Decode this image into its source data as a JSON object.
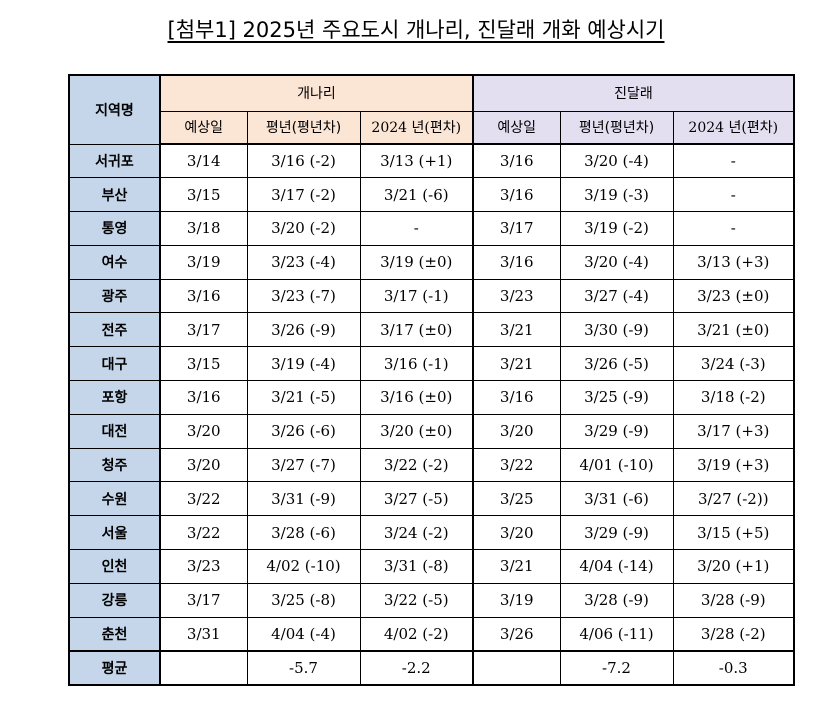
{
  "title": "[첨부1] 2025년 주요도시 개나리, 진달래 개화 예상시기",
  "header": {
    "region": "지역명",
    "forsythia": "개나리",
    "azalea": "진달래",
    "forsythia_cols": [
      "예상일",
      "평년(평년차)",
      "2024 년(편차)"
    ],
    "azalea_cols": [
      "예상일",
      "평년(평년차)",
      "2024 년(편차)"
    ]
  },
  "rows": [
    {
      "region": "서귀포",
      "f_exp": "3/14",
      "f_norm": "3/16 (-2)",
      "f_2024": "3/13 (+1)",
      "a_exp": "3/16",
      "a_norm": "3/20 (-4)",
      "a_2024": "-"
    },
    {
      "region": "부산",
      "f_exp": "3/15",
      "f_norm": "3/17 (-2)",
      "f_2024": "3/21 (-6)",
      "a_exp": "3/16",
      "a_norm": "3/19 (-3)",
      "a_2024": "-"
    },
    {
      "region": "통영",
      "f_exp": "3/18",
      "f_norm": "3/20 (-2)",
      "f_2024": "-",
      "a_exp": "3/17",
      "a_norm": "3/19 (-2)",
      "a_2024": "-"
    },
    {
      "region": "여수",
      "f_exp": "3/19",
      "f_norm": "3/23 (-4)",
      "f_2024": "3/19 (±0)",
      "a_exp": "3/16",
      "a_norm": "3/20 (-4)",
      "a_2024": "3/13 (+3)"
    },
    {
      "region": "광주",
      "f_exp": "3/16",
      "f_norm": "3/23 (-7)",
      "f_2024": "3/17 (-1)",
      "a_exp": "3/23",
      "a_norm": "3/27 (-4)",
      "a_2024": "3/23 (±0)"
    },
    {
      "region": "전주",
      "f_exp": "3/17",
      "f_norm": "3/26 (-9)",
      "f_2024": "3/17 (±0)",
      "a_exp": "3/21",
      "a_norm": "3/30 (-9)",
      "a_2024": "3/21 (±0)"
    },
    {
      "region": "대구",
      "f_exp": "3/15",
      "f_norm": "3/19 (-4)",
      "f_2024": "3/16 (-1)",
      "a_exp": "3/21",
      "a_norm": "3/26 (-5)",
      "a_2024": "3/24 (-3)"
    },
    {
      "region": "포항",
      "f_exp": "3/16",
      "f_norm": "3/21 (-5)",
      "f_2024": "3/16 (±0)",
      "a_exp": "3/16",
      "a_norm": "3/25 (-9)",
      "a_2024": "3/18 (-2)"
    },
    {
      "region": "대전",
      "f_exp": "3/20",
      "f_norm": "3/26 (-6)",
      "f_2024": "3/20 (±0)",
      "a_exp": "3/20",
      "a_norm": "3/29 (-9)",
      "a_2024": "3/17 (+3)"
    },
    {
      "region": "청주",
      "f_exp": "3/20",
      "f_norm": "3/27 (-7)",
      "f_2024": "3/22 (-2)",
      "a_exp": "3/22",
      "a_norm": "4/01 (-10)",
      "a_2024": "3/19 (+3)"
    },
    {
      "region": "수원",
      "f_exp": "3/22",
      "f_norm": "3/31 (-9)",
      "f_2024": "3/27 (-5)",
      "a_exp": "3/25",
      "a_norm": "3/31 (-6)",
      "a_2024": "3/27 (-2))"
    },
    {
      "region": "서울",
      "f_exp": "3/22",
      "f_norm": "3/28 (-6)",
      "f_2024": "3/24 (-2)",
      "a_exp": "3/20",
      "a_norm": "3/29 (-9)",
      "a_2024": "3/15 (+5)"
    },
    {
      "region": "인천",
      "f_exp": "3/23",
      "f_norm": "4/02 (-10)",
      "f_2024": "3/31 (-8)",
      "a_exp": "3/21",
      "a_norm": "4/04 (-14)",
      "a_2024": "3/20 (+1)"
    },
    {
      "region": "강릉",
      "f_exp": "3/17",
      "f_norm": "3/25 (-8)",
      "f_2024": "3/22 (-5)",
      "a_exp": "3/19",
      "a_norm": "3/28 (-9)",
      "a_2024": "3/28 (-9)"
    },
    {
      "region": "춘천",
      "f_exp": "3/31",
      "f_norm": "4/04 (-4)",
      "f_2024": "4/02 (-2)",
      "a_exp": "3/26",
      "a_norm": "4/06 (-11)",
      "a_2024": "3/28 (-2)"
    }
  ],
  "average": {
    "region": "평균",
    "f_exp": "",
    "f_norm": "-5.7",
    "f_2024": "-2.2",
    "a_exp": "",
    "a_norm": "-7.2",
    "a_2024": "-0.3"
  },
  "colors": {
    "region_bg": "#c5d6ea",
    "forsythia_bg": "#fbe5d5",
    "azalea_bg": "#e4dff0"
  }
}
